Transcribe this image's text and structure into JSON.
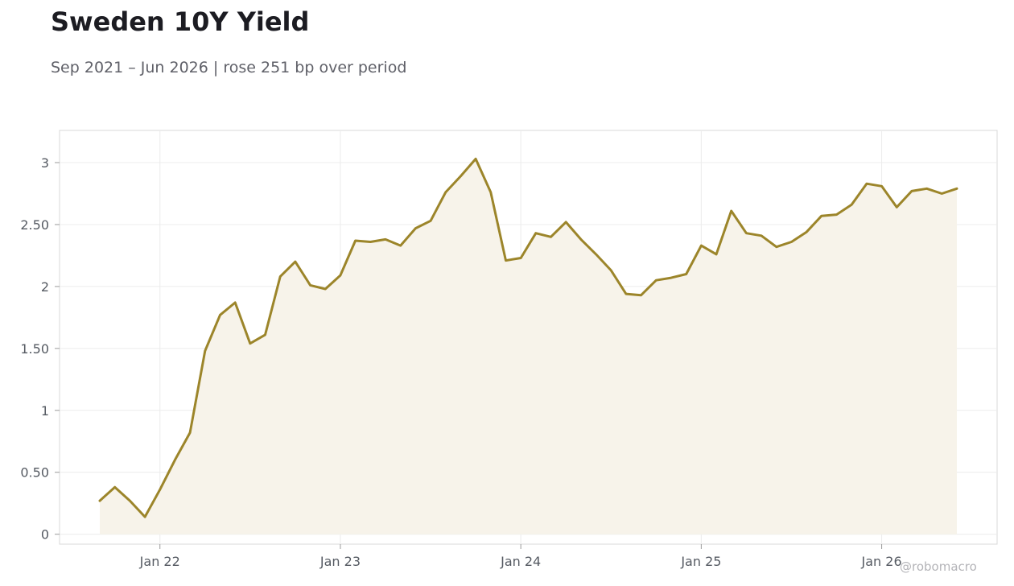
{
  "title": "Sweden 10Y Yield",
  "subtitle": "Sep 2021 – Jun 2026 | rose 251 bp over period",
  "watermark": "@robomacro",
  "colors": {
    "line": "#9c852a",
    "fill": "#f7f3ea",
    "grid": "#ececec",
    "frame": "#d8d8d8"
  },
  "chart_data": {
    "type": "area",
    "title": "Sweden 10Y Yield",
    "xlabel": "",
    "ylabel": "",
    "ylim": [
      -0.08,
      3.26
    ],
    "yticks": [
      0,
      0.5,
      1,
      1.5,
      2,
      2.5,
      3
    ],
    "ytick_labels": [
      "0",
      "0.50",
      "1",
      "1.50",
      "2",
      "2.50",
      "3"
    ],
    "xticks": [
      "2022-01",
      "2023-01",
      "2024-01",
      "2025-01",
      "2026-01"
    ],
    "xtick_labels": [
      "Jan 22",
      "Jan 23",
      "Jan 24",
      "Jan 25",
      "Jan 26"
    ],
    "grid": true,
    "series": [
      {
        "x": [
          "2021-09",
          "2021-10",
          "2021-11",
          "2021-12",
          "2022-01",
          "2022-02",
          "2022-03",
          "2022-04",
          "2022-05",
          "2022-06",
          "2022-07",
          "2022-08",
          "2022-09",
          "2022-10",
          "2022-11",
          "2022-12",
          "2023-01",
          "2023-02",
          "2023-03",
          "2023-04",
          "2023-05",
          "2023-06",
          "2023-07",
          "2023-08",
          "2023-09",
          "2023-10",
          "2023-11",
          "2023-12",
          "2024-01",
          "2024-02",
          "2024-03",
          "2024-04",
          "2024-05",
          "2024-06",
          "2024-07",
          "2024-08",
          "2024-09",
          "2024-10",
          "2024-11",
          "2024-12",
          "2025-01",
          "2025-02",
          "2025-03",
          "2025-04",
          "2025-05",
          "2025-06",
          "2025-07",
          "2025-08",
          "2025-09",
          "2025-10",
          "2025-11",
          "2025-12",
          "2026-01",
          "2026-02",
          "2026-03",
          "2026-04",
          "2026-05",
          "2026-06"
        ],
        "values": [
          0.27,
          0.38,
          0.27,
          0.14,
          0.36,
          0.6,
          0.82,
          1.48,
          1.77,
          1.87,
          1.54,
          1.61,
          2.08,
          2.2,
          2.01,
          1.98,
          2.09,
          2.37,
          2.36,
          2.38,
          2.33,
          2.47,
          2.53,
          2.76,
          2.89,
          3.03,
          2.76,
          2.21,
          2.23,
          2.43,
          2.4,
          2.52,
          2.38,
          2.26,
          2.13,
          1.94,
          1.93,
          2.05,
          2.07,
          2.1,
          2.33,
          2.26,
          2.61,
          2.43,
          2.41,
          2.32,
          2.36,
          2.44,
          2.57,
          2.58,
          2.66,
          2.83,
          2.81,
          2.64,
          2.77,
          2.79,
          2.75,
          2.79
        ]
      }
    ]
  }
}
